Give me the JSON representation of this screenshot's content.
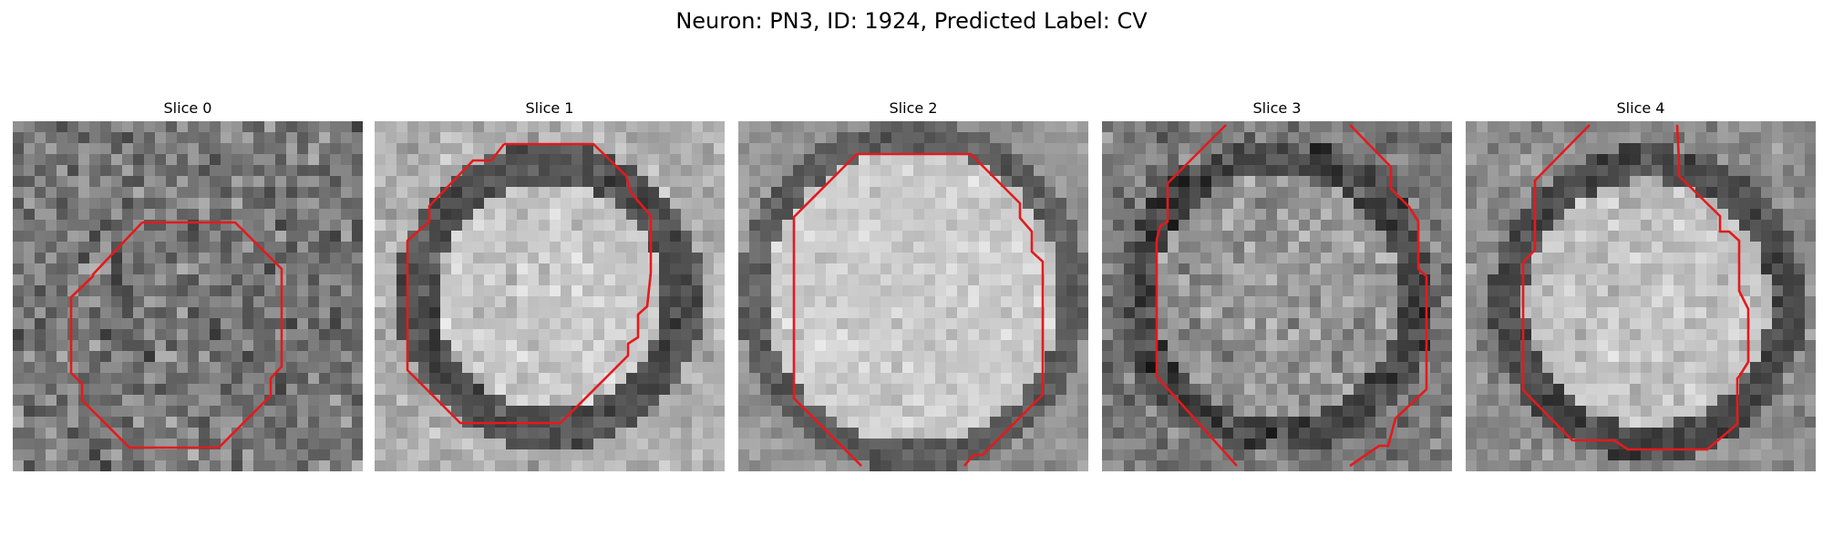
{
  "figure": {
    "title": "Neuron: PN3, ID: 1924, Predicted Label: CV"
  },
  "panels": [
    {
      "title": "Slice 0",
      "outline_color": "#e41a1c"
    },
    {
      "title": "Slice 1",
      "outline_color": "#e41a1c"
    },
    {
      "title": "Slice 2",
      "outline_color": "#e41a1c"
    },
    {
      "title": "Slice 3",
      "outline_color": "#e41a1c"
    },
    {
      "title": "Slice 4",
      "outline_color": "#e41a1c"
    }
  ]
}
